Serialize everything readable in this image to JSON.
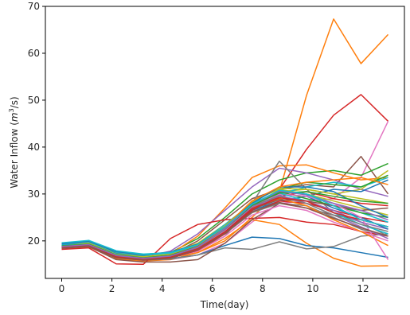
{
  "chart_data": {
    "type": "line",
    "title": "",
    "xlabel": "Time(day)",
    "ylabel_main": "Water Inflow (",
    "ylabel_italic": "m",
    "ylabel_sup": "3",
    "ylabel_rest": "/s)",
    "xlim": [
      -0.65,
      13.65
    ],
    "ylim": [
      12,
      70
    ],
    "xticks": [
      0,
      2,
      4,
      6,
      8,
      10,
      12
    ],
    "yticks": [
      20,
      30,
      40,
      50,
      60,
      70
    ],
    "x": [
      0,
      1.08,
      2.17,
      3.25,
      4.33,
      5.42,
      6.5,
      7.58,
      8.67,
      9.75,
      10.83,
      11.92,
      13
    ],
    "series": [
      {
        "color": "#ff7f0e",
        "values": [
          18.5,
          19.0,
          16.5,
          16.0,
          16.5,
          17.5,
          20.0,
          25.0,
          30.5,
          51.0,
          67.3,
          57.8,
          64.0
        ]
      },
      {
        "color": "#d62728",
        "values": [
          18.8,
          19.2,
          16.8,
          16.2,
          16.5,
          18.0,
          21.5,
          26.5,
          31.0,
          39.5,
          46.8,
          51.2,
          45.5
        ]
      },
      {
        "color": "#e377c2",
        "values": [
          18.3,
          18.8,
          16.3,
          15.8,
          16.0,
          17.0,
          19.5,
          24.0,
          28.0,
          28.5,
          29.0,
          33.5,
          45.5
        ]
      },
      {
        "color": "#8c564b",
        "values": [
          18.7,
          19.1,
          17.0,
          16.5,
          17.0,
          20.0,
          24.5,
          29.0,
          31.0,
          32.0,
          31.5,
          38.0,
          30.0
        ]
      },
      {
        "color": "#2ca02c",
        "values": [
          19.0,
          19.5,
          17.2,
          16.8,
          17.5,
          20.5,
          25.0,
          30.0,
          33.0,
          34.5,
          35.0,
          34.0,
          36.5
        ]
      },
      {
        "color": "#ff7f0e",
        "values": [
          18.6,
          19.2,
          17.1,
          16.4,
          17.2,
          21.0,
          27.0,
          33.5,
          36.0,
          36.2,
          34.5,
          33.0,
          33.5
        ]
      },
      {
        "color": "#9467bd",
        "values": [
          18.9,
          19.3,
          17.0,
          16.6,
          17.8,
          21.5,
          26.5,
          31.5,
          35.5,
          34.5,
          33.0,
          31.0,
          29.5
        ]
      },
      {
        "color": "#bcbd22",
        "values": [
          19.2,
          19.6,
          17.5,
          16.9,
          17.5,
          19.5,
          23.5,
          28.0,
          30.5,
          31.0,
          30.0,
          31.0,
          35.0
        ]
      },
      {
        "color": "#17becf",
        "values": [
          19.5,
          20.0,
          17.8,
          17.0,
          17.2,
          19.0,
          22.5,
          27.5,
          30.0,
          31.5,
          32.5,
          31.5,
          33.5
        ]
      },
      {
        "color": "#1f77b4",
        "values": [
          19.1,
          19.4,
          17.3,
          16.7,
          17.0,
          18.5,
          22.0,
          26.5,
          28.5,
          29.5,
          31.0,
          30.5,
          33.0
        ]
      },
      {
        "color": "#7f7f7f",
        "values": [
          18.5,
          18.9,
          16.5,
          16.0,
          16.3,
          18.0,
          21.0,
          28.0,
          37.0,
          31.0,
          26.0,
          24.0,
          21.0
        ]
      },
      {
        "color": "#ff7f0e",
        "values": [
          18.4,
          18.7,
          16.2,
          15.7,
          16.0,
          17.5,
          20.5,
          24.5,
          23.5,
          19.5,
          16.3,
          14.6,
          14.7
        ]
      },
      {
        "color": "#1f77b4",
        "values": [
          18.6,
          18.9,
          16.6,
          16.0,
          16.2,
          17.0,
          19.0,
          20.8,
          20.5,
          19.0,
          18.5,
          17.5,
          16.5
        ]
      },
      {
        "color": "#7f7f7f",
        "values": [
          18.5,
          18.8,
          16.4,
          15.9,
          16.1,
          17.0,
          18.5,
          18.2,
          19.8,
          18.3,
          18.8,
          21.0,
          21.5
        ]
      },
      {
        "color": "#d62728",
        "values": [
          18.2,
          18.5,
          15.1,
          15.0,
          20.5,
          23.5,
          24.5,
          24.8,
          25.0,
          24.0,
          23.5,
          22.0,
          21.0
        ]
      },
      {
        "color": "#8c564b",
        "values": [
          18.4,
          18.8,
          16.0,
          15.5,
          15.5,
          16.0,
          19.5,
          24.5,
          28.0,
          27.0,
          25.5,
          24.5,
          23.0
        ]
      },
      {
        "color": "#2ca02c",
        "values": [
          18.8,
          19.1,
          16.9,
          16.3,
          16.8,
          18.5,
          22.0,
          27.0,
          31.0,
          32.5,
          32.0,
          31.5,
          34.0
        ]
      },
      {
        "color": "#d62728",
        "values": [
          18.7,
          19.0,
          16.6,
          16.1,
          16.6,
          18.0,
          21.5,
          26.0,
          28.5,
          28.0,
          26.5,
          25.0,
          24.0
        ]
      },
      {
        "color": "#9467bd",
        "values": [
          18.9,
          19.2,
          16.9,
          16.4,
          17.0,
          18.5,
          22.5,
          27.0,
          29.5,
          28.5,
          26.5,
          24.0,
          22.5
        ]
      },
      {
        "color": "#e377c2",
        "values": [
          18.5,
          18.9,
          16.5,
          15.9,
          16.4,
          17.8,
          21.0,
          25.5,
          27.5,
          26.5,
          24.0,
          22.0,
          20.0
        ]
      },
      {
        "color": "#7f7f7f",
        "values": [
          18.6,
          19.0,
          16.7,
          16.1,
          16.5,
          18.2,
          21.5,
          26.0,
          28.0,
          27.5,
          25.0,
          22.5,
          21.0
        ]
      },
      {
        "color": "#bcbd22",
        "values": [
          18.8,
          19.3,
          17.0,
          16.5,
          17.0,
          19.0,
          23.0,
          28.5,
          31.0,
          30.0,
          28.5,
          27.0,
          25.5
        ]
      },
      {
        "color": "#17becf",
        "values": [
          19.0,
          19.4,
          17.2,
          16.6,
          17.2,
          19.2,
          23.5,
          28.0,
          30.5,
          30.0,
          28.0,
          26.0,
          24.0
        ]
      },
      {
        "color": "#1f77b4",
        "values": [
          18.7,
          19.1,
          16.8,
          16.2,
          16.7,
          18.6,
          22.5,
          27.5,
          30.0,
          29.5,
          27.0,
          25.0,
          22.5
        ]
      },
      {
        "color": "#ff7f0e",
        "values": [
          18.6,
          19.0,
          16.6,
          16.0,
          16.6,
          18.5,
          22.0,
          27.0,
          29.0,
          27.5,
          24.5,
          22.0,
          19.0
        ]
      },
      {
        "color": "#2ca02c",
        "values": [
          18.9,
          19.3,
          17.0,
          16.5,
          17.0,
          18.8,
          22.8,
          27.8,
          30.5,
          29.0,
          27.5,
          26.0,
          25.0
        ]
      },
      {
        "color": "#d62728",
        "values": [
          18.5,
          18.9,
          16.4,
          15.9,
          16.3,
          18.0,
          21.5,
          26.5,
          29.5,
          30.5,
          29.0,
          28.0,
          27.5
        ]
      },
      {
        "color": "#9467bd",
        "values": [
          18.8,
          19.2,
          16.9,
          16.3,
          16.9,
          18.7,
          22.2,
          27.2,
          29.8,
          28.0,
          25.5,
          23.0,
          20.5
        ]
      },
      {
        "color": "#8c564b",
        "values": [
          18.6,
          19.0,
          16.7,
          16.1,
          16.6,
          18.4,
          21.8,
          26.8,
          28.8,
          28.5,
          27.5,
          26.5,
          27.0
        ]
      },
      {
        "color": "#e377c2",
        "values": [
          18.7,
          19.1,
          16.8,
          16.2,
          16.8,
          18.6,
          22.3,
          27.5,
          30.0,
          29.5,
          28.0,
          25.0,
          16.0
        ]
      },
      {
        "color": "#bcbd22",
        "values": [
          18.9,
          19.4,
          17.1,
          16.6,
          17.2,
          19.1,
          23.2,
          28.3,
          31.2,
          31.0,
          30.0,
          29.0,
          28.0
        ]
      },
      {
        "color": "#17becf",
        "values": [
          19.3,
          19.8,
          17.6,
          17.0,
          17.4,
          19.0,
          22.8,
          27.8,
          30.2,
          28.5,
          26.0,
          23.5,
          21.5
        ]
      },
      {
        "color": "#1f77b4",
        "values": [
          19.4,
          19.9,
          17.7,
          17.1,
          17.6,
          19.3,
          23.0,
          28.0,
          31.5,
          31.5,
          30.5,
          27.5,
          25.0
        ]
      },
      {
        "color": "#ff7f0e",
        "values": [
          18.8,
          19.2,
          16.9,
          16.3,
          16.9,
          18.9,
          23.0,
          28.5,
          31.5,
          32.5,
          33.0,
          33.5,
          32.0
        ]
      },
      {
        "color": "#7f7f7f",
        "values": [
          18.7,
          19.1,
          16.8,
          16.2,
          16.7,
          18.6,
          22.4,
          27.5,
          29.5,
          28.0,
          25.5,
          23.5,
          22.0
        ]
      },
      {
        "color": "#2ca02c",
        "values": [
          18.9,
          19.3,
          17.0,
          16.4,
          16.9,
          18.8,
          22.6,
          27.6,
          30.2,
          30.5,
          29.5,
          28.5,
          28.0
        ]
      },
      {
        "color": "#d62728",
        "values": [
          18.6,
          19.0,
          16.6,
          16.0,
          16.5,
          18.3,
          21.9,
          26.9,
          29.2,
          28.5,
          26.0,
          24.5,
          23.0
        ]
      },
      {
        "color": "#9467bd",
        "values": [
          18.8,
          19.2,
          16.9,
          16.3,
          16.8,
          18.7,
          22.6,
          27.8,
          30.6,
          29.8,
          28.0,
          26.5,
          24.5
        ]
      },
      {
        "color": "#8c564b",
        "values": [
          18.5,
          18.9,
          16.4,
          15.9,
          16.3,
          18.1,
          21.6,
          26.2,
          28.2,
          27.0,
          24.8,
          22.8,
          21.0
        ]
      },
      {
        "color": "#17becf",
        "values": [
          19.6,
          20.1,
          17.9,
          17.2,
          17.5,
          19.2,
          23.0,
          27.8,
          30.8,
          30.0,
          27.5,
          24.5,
          23.0
        ]
      }
    ]
  }
}
